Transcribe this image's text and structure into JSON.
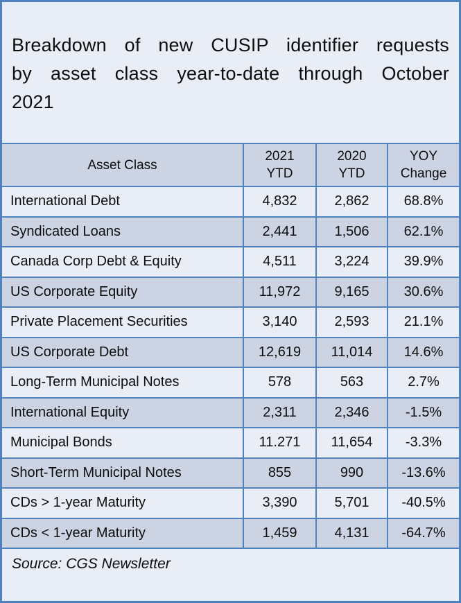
{
  "card": {
    "title_lines": [
      "Breakdown of new CUSIP identifier requests",
      "by asset class year-to-date through October",
      "2021"
    ],
    "source": "Source: CGS Newsletter"
  },
  "colors": {
    "border_blue": "#4f81bd",
    "row_light": "#e9edf5",
    "row_dark": "#ccd3e3"
  },
  "table": {
    "display_headers": {
      "asset": "Asset Class",
      "y2021": "2021\nYTD",
      "y2020": "2020\nYTD",
      "yoy": "YOY\nChange"
    }
  },
  "chart_data": {
    "type": "table",
    "title": "Breakdown of new CUSIP identifier requests by asset class year-to-date through October 2021",
    "columns": [
      "Asset Class",
      "2021 YTD",
      "2020 YTD",
      "YOY Change"
    ],
    "rows": [
      {
        "asset": "International Debt",
        "y2021": "4,832",
        "y2020": "2,862",
        "yoy": "68.8%"
      },
      {
        "asset": "Syndicated Loans",
        "y2021": "2,441",
        "y2020": "1,506",
        "yoy": "62.1%"
      },
      {
        "asset": "Canada Corp Debt & Equity",
        "y2021": "4,511",
        "y2020": "3,224",
        "yoy": "39.9%"
      },
      {
        "asset": "US Corporate Equity",
        "y2021": "11,972",
        "y2020": "9,165",
        "yoy": "30.6%"
      },
      {
        "asset": "Private Placement Securities",
        "y2021": "3,140",
        "y2020": "2,593",
        "yoy": "21.1%"
      },
      {
        "asset": "US Corporate Debt",
        "y2021": "12,619",
        "y2020": "11,014",
        "yoy": "14.6%"
      },
      {
        "asset": "Long-Term Municipal Notes",
        "y2021": "578",
        "y2020": "563",
        "yoy": "2.7%"
      },
      {
        "asset": "International Equity",
        "y2021": "2,311",
        "y2020": "2,346",
        "yoy": "-1.5%"
      },
      {
        "asset": "Municipal Bonds",
        "y2021": "11.271",
        "y2020": "11,654",
        "yoy": "-3.3%"
      },
      {
        "asset": "Short-Term Municipal Notes",
        "y2021": "855",
        "y2020": "990",
        "yoy": "-13.6%"
      },
      {
        "asset": "CDs > 1-year Maturity",
        "y2021": "3,390",
        "y2020": "5,701",
        "yoy": "-40.5%"
      },
      {
        "asset": "CDs < 1-year Maturity",
        "y2021": "1,459",
        "y2020": "4,131",
        "yoy": "-64.7%"
      }
    ],
    "source": "Source: CGS Newsletter",
    "layout": {
      "header_background": "#ccd3e3",
      "striped": true,
      "grid": "all-blue-borders"
    }
  }
}
